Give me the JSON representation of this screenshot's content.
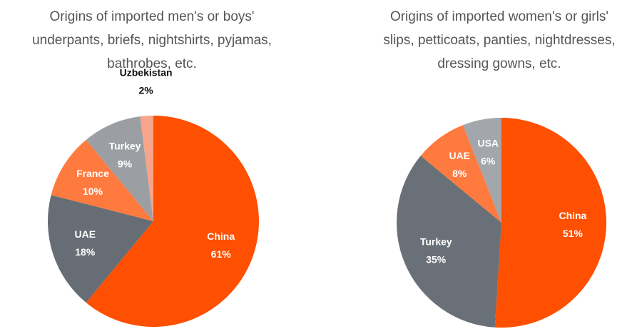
{
  "chart_data": [
    {
      "type": "pie",
      "title": [
        "Origins of imported men's or boys'",
        "underpants, briefs, nightshirts, pyjamas,",
        "bathrobes, etc."
      ],
      "categories": [
        "China",
        "UAE",
        "France",
        "Turkey",
        "Uzbekistan"
      ],
      "values": [
        61,
        18,
        10,
        9,
        2
      ],
      "value_labels": [
        "61%",
        "18%",
        "10%",
        "9%",
        "2%"
      ],
      "colors": [
        "#ff4f00",
        "#676d74",
        "#ff7a3f",
        "#9b9fa4",
        "#f7a48a"
      ]
    },
    {
      "type": "pie",
      "title": [
        "Origins of imported women's or girls'",
        "slips, petticoats, panties, nightdresses,",
        "dressing gowns, etc."
      ],
      "categories": [
        "China",
        "Turkey",
        "UAE",
        "USA"
      ],
      "values": [
        51,
        35,
        8,
        6
      ],
      "value_labels": [
        "51%",
        "35%",
        "8%",
        "6%"
      ],
      "colors": [
        "#ff4f00",
        "#6a7077",
        "#ff7a3f",
        "#a3a6ab"
      ]
    }
  ]
}
